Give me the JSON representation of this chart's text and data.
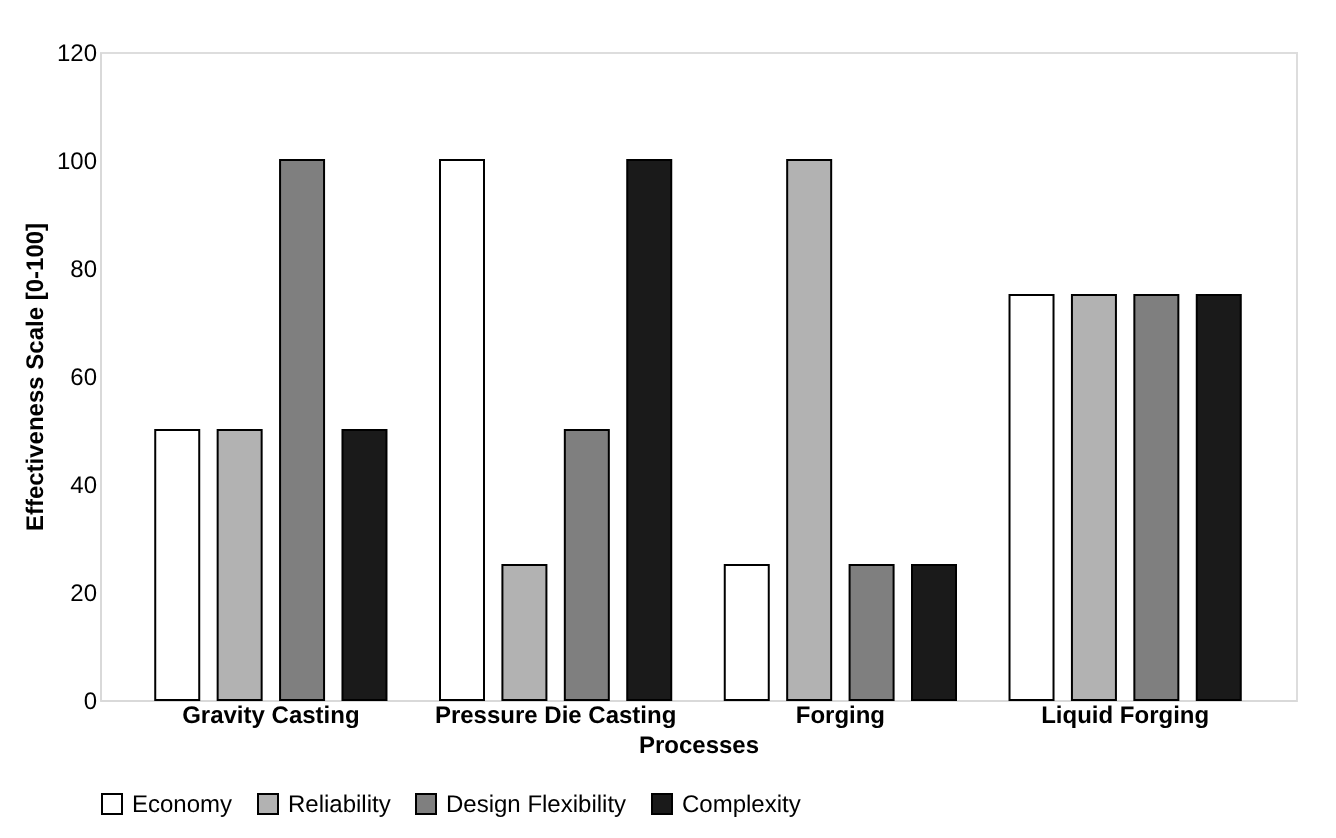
{
  "chart_data": {
    "type": "bar",
    "xlabel": "Processes",
    "ylabel": "Effectiveness Scale [0-100]",
    "categories": [
      "Gravity Casting",
      "Pressure Die Casting",
      "Forging",
      "Liquid Forging"
    ],
    "series": [
      {
        "name": "Economy",
        "color": "#ffffff",
        "values": [
          50,
          100,
          25,
          75
        ]
      },
      {
        "name": "Reliability",
        "color": "#b2b2b2",
        "values": [
          50,
          25,
          100,
          75
        ]
      },
      {
        "name": "Design Flexibility",
        "color": "#7f7f7f",
        "values": [
          100,
          50,
          25,
          75
        ]
      },
      {
        "name": "Complexity",
        "color": "#1a1a1a",
        "values": [
          50,
          100,
          25,
          75
        ]
      }
    ],
    "ylim": [
      0,
      120
    ],
    "yticks": [
      0,
      20,
      40,
      60,
      80,
      100,
      120
    ],
    "grid": false,
    "legend": "bottom"
  }
}
